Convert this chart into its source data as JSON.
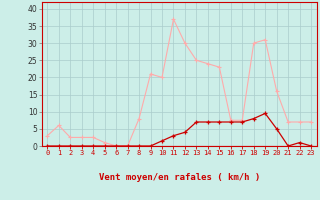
{
  "x": [
    0,
    1,
    2,
    3,
    4,
    5,
    6,
    7,
    8,
    9,
    10,
    11,
    12,
    13,
    14,
    15,
    16,
    17,
    18,
    19,
    20,
    21,
    22,
    23
  ],
  "rafales": [
    3,
    6,
    2.5,
    2.5,
    2.5,
    1,
    0,
    0,
    8,
    21,
    20,
    37,
    30,
    25,
    24,
    23,
    7.5,
    7.5,
    30,
    31,
    16,
    7,
    7,
    7
  ],
  "moyen": [
    0,
    0,
    0,
    0,
    0,
    0,
    0,
    0,
    0,
    0,
    1.5,
    3,
    4,
    7,
    7,
    7,
    7,
    7,
    8,
    9.5,
    5,
    0,
    1,
    0
  ],
  "line_color_rafales": "#ffaaaa",
  "line_color_moyen": "#cc0000",
  "bg_color": "#cceee8",
  "grid_color": "#aacccc",
  "xlabel": "Vent moyen/en rafales ( km/h )",
  "xlabel_color": "#cc0000",
  "yticks": [
    0,
    5,
    10,
    15,
    20,
    25,
    30,
    35,
    40
  ],
  "ylim": [
    0,
    42
  ],
  "xlim": [
    -0.5,
    23.5
  ]
}
